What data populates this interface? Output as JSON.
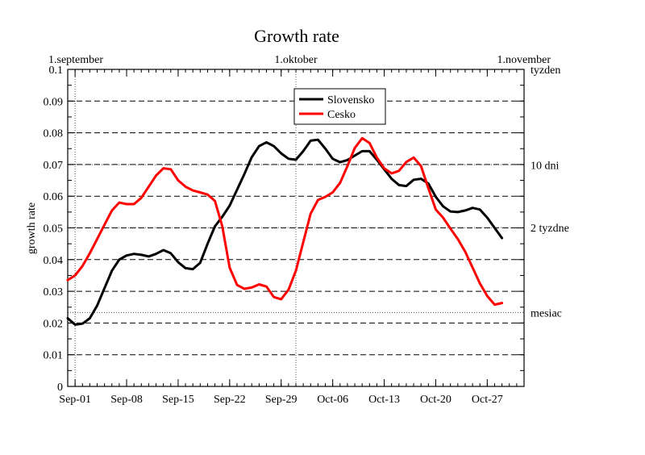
{
  "chart_data": {
    "type": "line",
    "title": "Growth rate",
    "xlabel": "",
    "ylabel": "growth rate",
    "ylim": [
      0,
      0.1
    ],
    "xlim": [
      "2020-08-31",
      "2020-11-01"
    ],
    "y_ticks": [
      "0",
      "0.01",
      "0.02",
      "0.03",
      "0.04",
      "0.05",
      "0.06",
      "0.07",
      "0.08",
      "0.09",
      "0.1"
    ],
    "x_ticks": [
      {
        "date": "2020-09-01",
        "label": "Sep-01"
      },
      {
        "date": "2020-09-08",
        "label": "Sep-08"
      },
      {
        "date": "2020-09-15",
        "label": "Sep-15"
      },
      {
        "date": "2020-09-22",
        "label": "Sep-22"
      },
      {
        "date": "2020-09-29",
        "label": "Sep-29"
      },
      {
        "date": "2020-10-06",
        "label": "Oct-06"
      },
      {
        "date": "2020-10-13",
        "label": "Oct-13"
      },
      {
        "date": "2020-10-20",
        "label": "Oct-20"
      },
      {
        "date": "2020-10-27",
        "label": "Oct-27"
      }
    ],
    "top_markers": [
      {
        "date": "2020-09-01",
        "label": "1.september"
      },
      {
        "date": "2020-10-01",
        "label": "1.oktober"
      },
      {
        "date": "2020-11-01",
        "label": "1.november"
      }
    ],
    "reference_lines": [
      {
        "value": 0.1,
        "label": "tyzden"
      },
      {
        "value": 0.0699,
        "label": "10 dni"
      },
      {
        "value": 0.0501,
        "label": "2 tyzdne"
      },
      {
        "value": 0.0233,
        "label": "mesiac"
      }
    ],
    "grid": true,
    "legend_position": "top-center",
    "series": [
      {
        "name": "Slovensko",
        "color": "#000000",
        "x": [
          "2020-08-31",
          "2020-09-01",
          "2020-09-02",
          "2020-09-03",
          "2020-09-04",
          "2020-09-05",
          "2020-09-06",
          "2020-09-07",
          "2020-09-08",
          "2020-09-09",
          "2020-09-10",
          "2020-09-11",
          "2020-09-12",
          "2020-09-13",
          "2020-09-14",
          "2020-09-15",
          "2020-09-16",
          "2020-09-17",
          "2020-09-18",
          "2020-09-19",
          "2020-09-20",
          "2020-09-21",
          "2020-09-22",
          "2020-09-23",
          "2020-09-24",
          "2020-09-25",
          "2020-09-26",
          "2020-09-27",
          "2020-09-28",
          "2020-09-29",
          "2020-09-30",
          "2020-10-01",
          "2020-10-02",
          "2020-10-03",
          "2020-10-04",
          "2020-10-05",
          "2020-10-06",
          "2020-10-07",
          "2020-10-08",
          "2020-10-09",
          "2020-10-10",
          "2020-10-11",
          "2020-10-12",
          "2020-10-13",
          "2020-10-14",
          "2020-10-15",
          "2020-10-16",
          "2020-10-17",
          "2020-10-18",
          "2020-10-19",
          "2020-10-20",
          "2020-10-21",
          "2020-10-22",
          "2020-10-23",
          "2020-10-24",
          "2020-10-25",
          "2020-10-26",
          "2020-10-27",
          "2020-10-28",
          "2020-10-29"
        ],
        "y": [
          0.0215,
          0.0195,
          0.0198,
          0.0215,
          0.0255,
          0.031,
          0.0365,
          0.04,
          0.0413,
          0.0418,
          0.0415,
          0.041,
          0.0418,
          0.043,
          0.042,
          0.0392,
          0.0373,
          0.037,
          0.039,
          0.045,
          0.0505,
          0.0535,
          0.057,
          0.062,
          0.067,
          0.0723,
          0.0758,
          0.077,
          0.0758,
          0.0735,
          0.0718,
          0.0715,
          0.0742,
          0.0775,
          0.0778,
          0.075,
          0.0718,
          0.0707,
          0.0714,
          0.0728,
          0.0742,
          0.0742,
          0.0715,
          0.0685,
          0.0655,
          0.0635,
          0.0632,
          0.0652,
          0.0655,
          0.064,
          0.0598,
          0.0568,
          0.0552,
          0.055,
          0.0555,
          0.0563,
          0.0558,
          0.0532,
          0.05,
          0.0468
        ]
      },
      {
        "name": "Cesko",
        "color": "#ff0000",
        "x": [
          "2020-08-31",
          "2020-09-01",
          "2020-09-02",
          "2020-09-03",
          "2020-09-04",
          "2020-09-05",
          "2020-09-06",
          "2020-09-07",
          "2020-09-08",
          "2020-09-09",
          "2020-09-10",
          "2020-09-11",
          "2020-09-12",
          "2020-09-13",
          "2020-09-14",
          "2020-09-15",
          "2020-09-16",
          "2020-09-17",
          "2020-09-18",
          "2020-09-19",
          "2020-09-20",
          "2020-09-21",
          "2020-09-22",
          "2020-09-23",
          "2020-09-24",
          "2020-09-25",
          "2020-09-26",
          "2020-09-27",
          "2020-09-28",
          "2020-09-29",
          "2020-09-30",
          "2020-10-01",
          "2020-10-02",
          "2020-10-03",
          "2020-10-04",
          "2020-10-05",
          "2020-10-06",
          "2020-10-07",
          "2020-10-08",
          "2020-10-09",
          "2020-10-10",
          "2020-10-11",
          "2020-10-12",
          "2020-10-13",
          "2020-10-14",
          "2020-10-15",
          "2020-10-16",
          "2020-10-17",
          "2020-10-18",
          "2020-10-19",
          "2020-10-20",
          "2020-10-21",
          "2020-10-22",
          "2020-10-23",
          "2020-10-24",
          "2020-10-25",
          "2020-10-26",
          "2020-10-27",
          "2020-10-28",
          "2020-10-29"
        ],
        "y": [
          0.0335,
          0.035,
          0.038,
          0.042,
          0.0465,
          0.051,
          0.0555,
          0.058,
          0.0575,
          0.0575,
          0.0595,
          0.063,
          0.0665,
          0.0688,
          0.0685,
          0.065,
          0.063,
          0.0618,
          0.0612,
          0.0605,
          0.0585,
          0.0505,
          0.0375,
          0.032,
          0.0308,
          0.0312,
          0.0322,
          0.0315,
          0.0282,
          0.0275,
          0.0305,
          0.0365,
          0.0455,
          0.0545,
          0.0588,
          0.0598,
          0.0612,
          0.0642,
          0.0695,
          0.0752,
          0.0783,
          0.0768,
          0.0722,
          0.0688,
          0.0672,
          0.068,
          0.0708,
          0.0722,
          0.0695,
          0.0625,
          0.0558,
          0.0532,
          0.0498,
          0.0465,
          0.0425,
          0.0375,
          0.0325,
          0.0285,
          0.0258,
          0.0263
        ]
      }
    ]
  }
}
